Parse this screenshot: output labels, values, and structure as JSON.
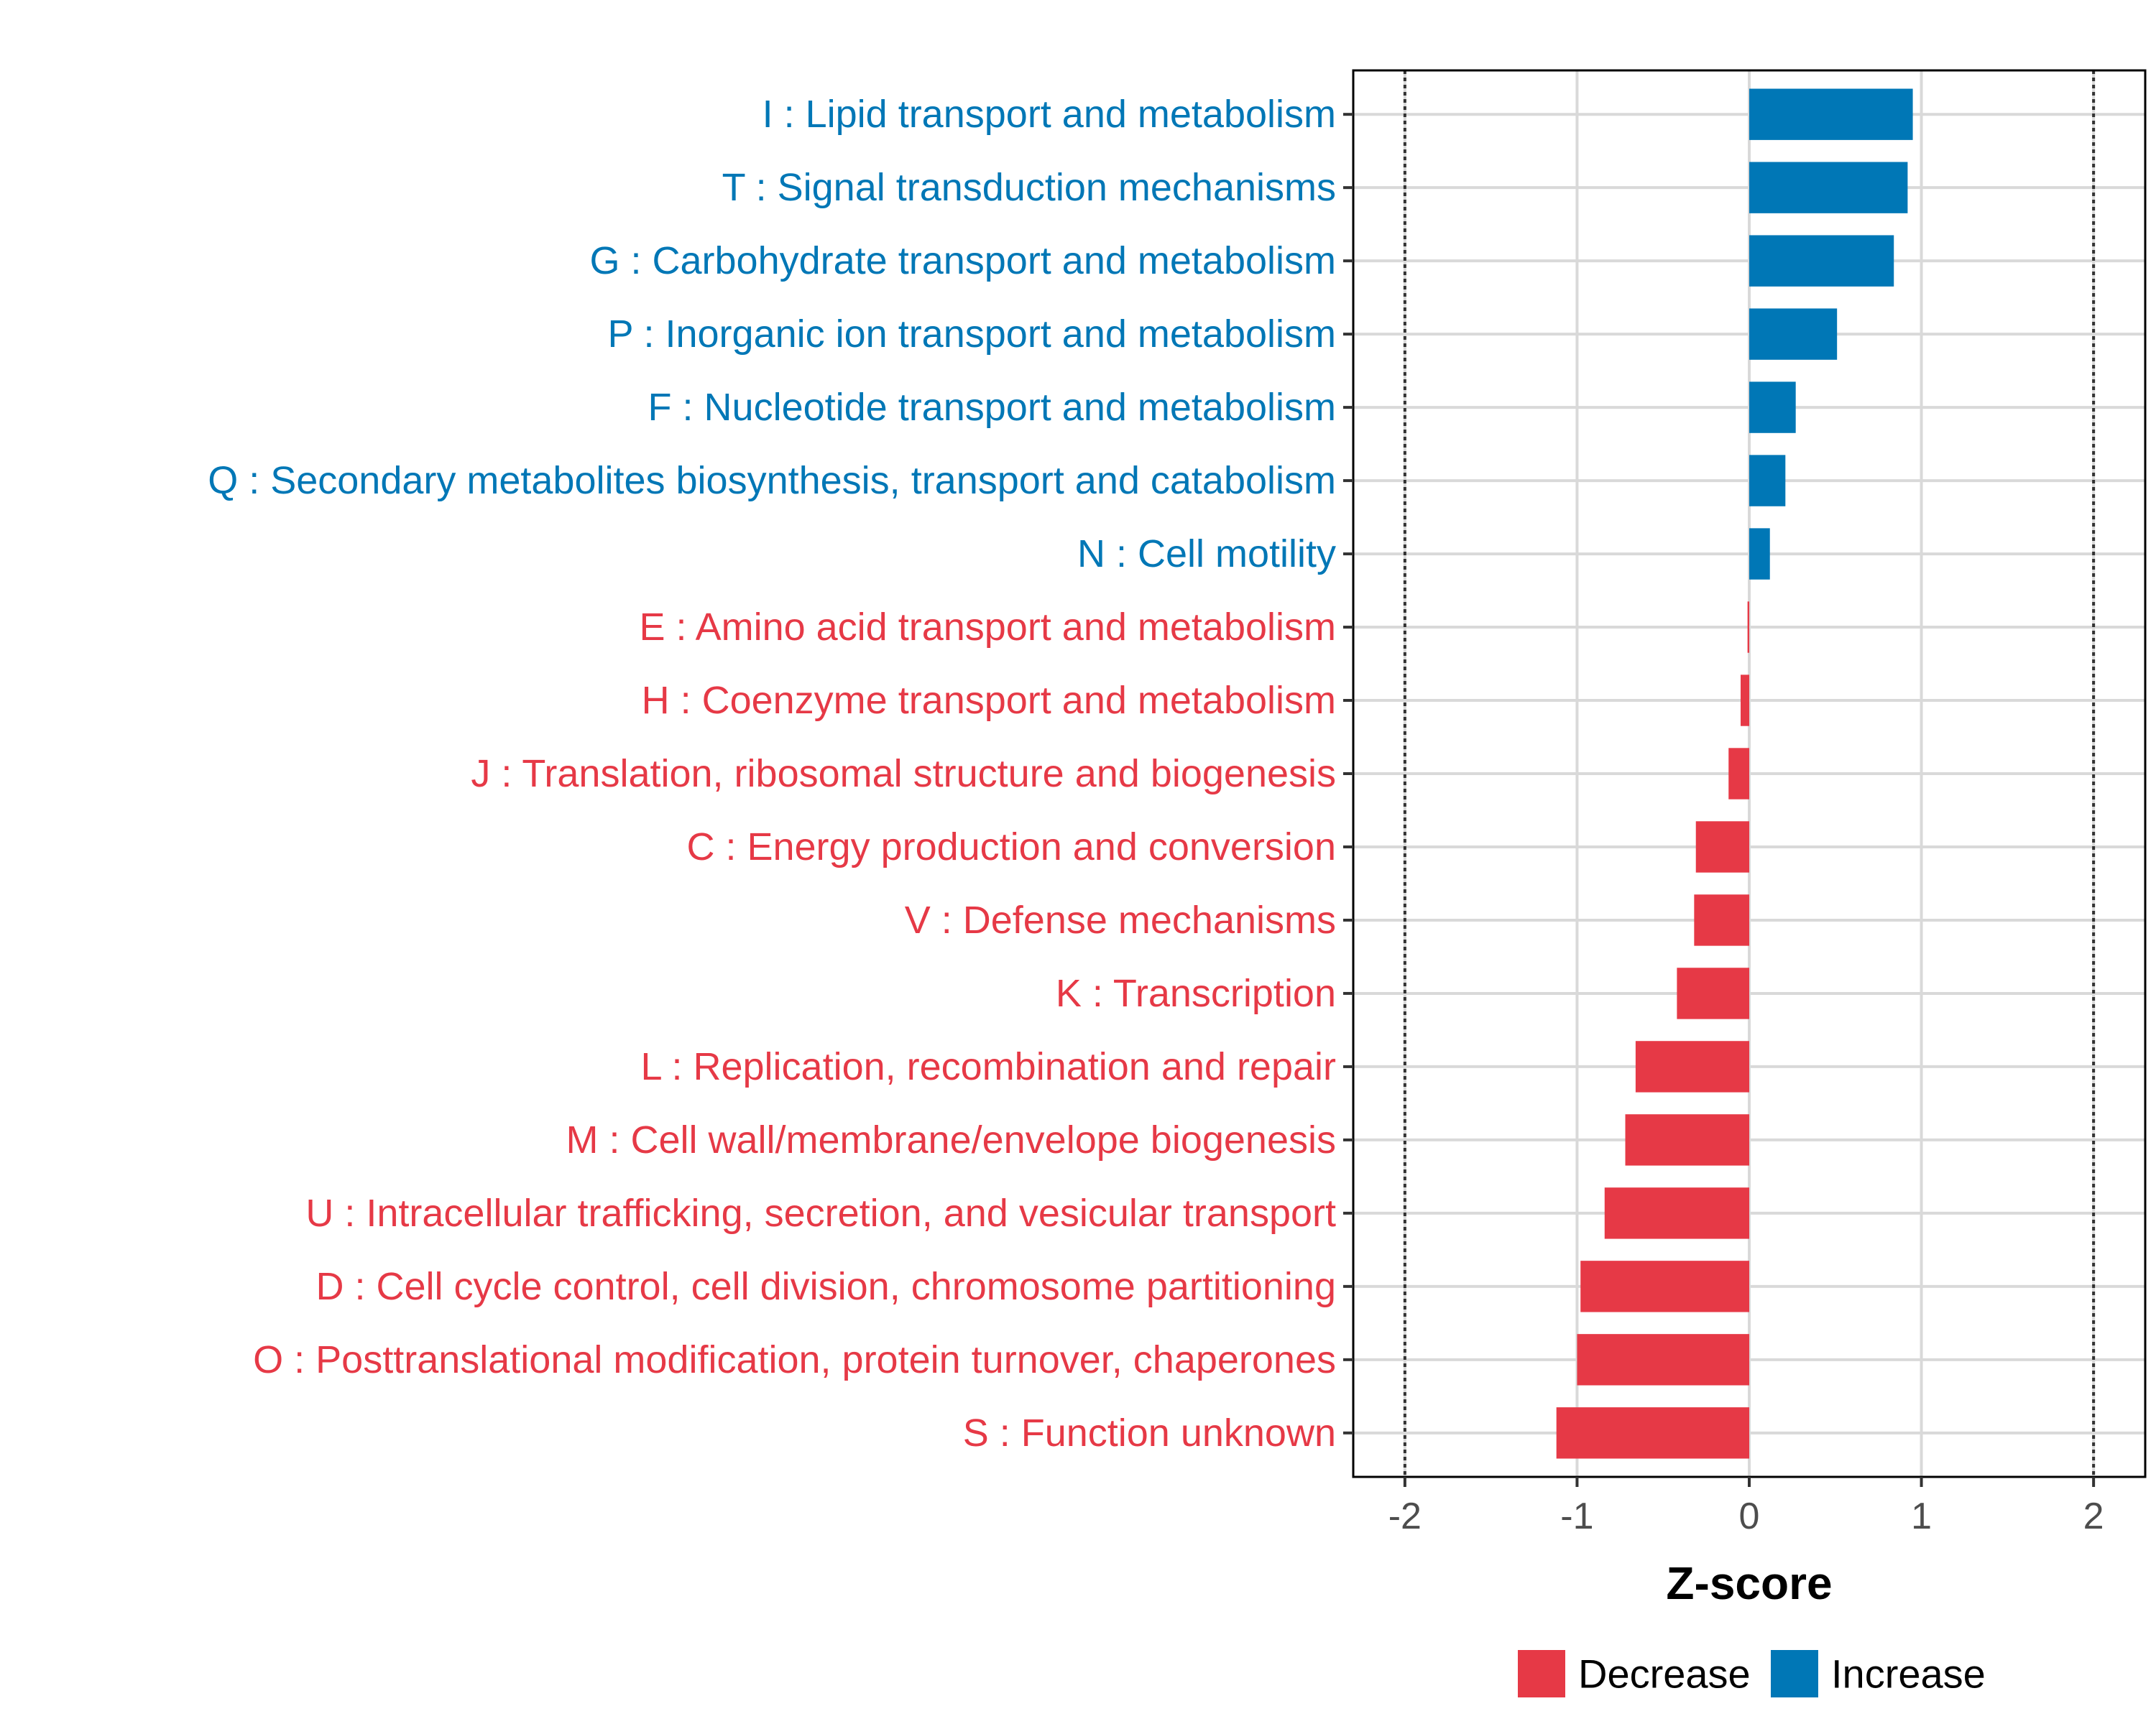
{
  "chart_data": {
    "type": "bar",
    "orientation": "horizontal",
    "title": "",
    "xlabel": "Z-score",
    "ylabel": "",
    "xlim": [
      -2.3,
      2.3
    ],
    "xticks": [
      -2,
      -1,
      0,
      1,
      2
    ],
    "xtick_labels": [
      "-2",
      "-1",
      "0",
      "1",
      "2"
    ],
    "reference_lines": [
      -2,
      2
    ],
    "grid": true,
    "categories": [
      "I : Lipid transport and metabolism",
      "T : Signal transduction mechanisms",
      "G : Carbohydrate transport and metabolism",
      "P : Inorganic ion transport and metabolism",
      "F : Nucleotide transport and metabolism",
      "Q : Secondary metabolites biosynthesis, transport and catabolism",
      "N : Cell motility",
      "E : Amino acid transport and metabolism",
      "H : Coenzyme transport and metabolism",
      "J : Translation, ribosomal structure and biogenesis",
      "C : Energy production and conversion",
      "V : Defense mechanisms",
      "K : Transcription",
      "L : Replication, recombination and repair",
      "M : Cell wall/membrane/envelope biogenesis",
      "U : Intracellular trafficking, secretion, and vesicular transport",
      "D : Cell cycle control, cell division, chromosome partitioning",
      "O : Posttranslational modification, protein turnover, chaperones",
      "S : Function unknown"
    ],
    "values": [
      0.95,
      0.92,
      0.84,
      0.51,
      0.27,
      0.21,
      0.12,
      -0.01,
      -0.05,
      -0.12,
      -0.31,
      -0.32,
      -0.42,
      -0.66,
      -0.72,
      -0.84,
      -0.98,
      -1.0,
      -1.12
    ],
    "groups": [
      "Increase",
      "Increase",
      "Increase",
      "Increase",
      "Increase",
      "Increase",
      "Increase",
      "Decrease",
      "Decrease",
      "Decrease",
      "Decrease",
      "Decrease",
      "Decrease",
      "Decrease",
      "Decrease",
      "Decrease",
      "Decrease",
      "Decrease",
      "Decrease"
    ],
    "legend": {
      "position": "bottom",
      "entries": [
        {
          "label": "Decrease",
          "color": "#E63946"
        },
        {
          "label": "Increase",
          "color": "#0077B6"
        }
      ]
    },
    "colors": {
      "Increase": "#0077B6",
      "Decrease": "#E63946"
    }
  }
}
